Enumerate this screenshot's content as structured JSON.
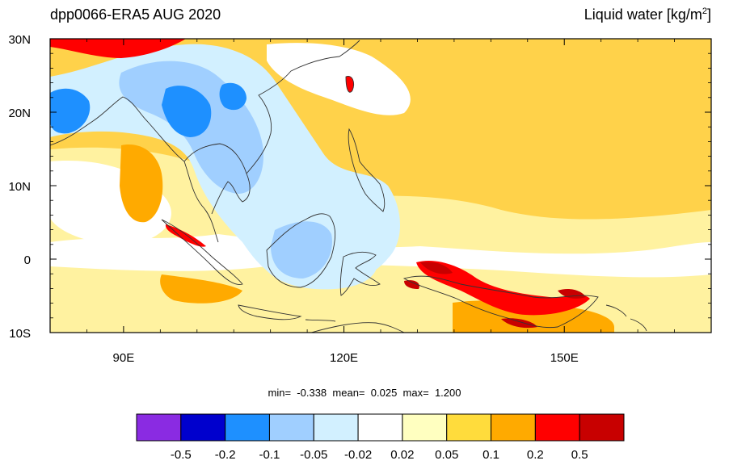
{
  "title": {
    "left": "dpp0066-ERA5 AUG 2020",
    "right_text": "Liquid water  [kg/m",
    "right_sup": "2",
    "right_close": "]"
  },
  "axes": {
    "lat_ticks": [
      {
        "label": "30N",
        "value": 30
      },
      {
        "label": "20N",
        "value": 20
      },
      {
        "label": "10N",
        "value": 10
      },
      {
        "label": "0",
        "value": 0
      },
      {
        "label": "10S",
        "value": -10
      }
    ],
    "lon_ticks": [
      {
        "label": "90E",
        "value": 90
      },
      {
        "label": "120E",
        "value": 120
      },
      {
        "label": "150E",
        "value": 150
      }
    ],
    "lon_range": [
      80,
      170
    ],
    "lat_range": [
      -10,
      30
    ]
  },
  "stats": {
    "min_label": "min=",
    "min": "-0.338",
    "mean_label": "mean=",
    "mean": "0.025",
    "max_label": "max=",
    "max": "1.200"
  },
  "colorbar": {
    "colors": [
      "#8a2be2",
      "#0000cd",
      "#1e90ff",
      "#a0cfff",
      "#d2f0ff",
      "#ffffff",
      "#ffffc0",
      "#ffdc3c",
      "#ffaa00",
      "#ff0000",
      "#c80000"
    ],
    "labels": [
      "-0.5",
      "-0.2",
      "-0.1",
      "-0.05",
      "-0.02",
      "0.02",
      "0.05",
      "0.1",
      "0.2",
      "0.5"
    ]
  },
  "colors": {
    "ocean_base": "#ffd24a",
    "pale_yellow": "#fff2a0",
    "white": "#ffffff",
    "light_blue": "#d2f0ff",
    "mid_blue": "#a0cfff",
    "blue": "#1e90ff",
    "orange": "#ffaa00",
    "red": "#ff0000",
    "dark_red": "#c80000"
  }
}
